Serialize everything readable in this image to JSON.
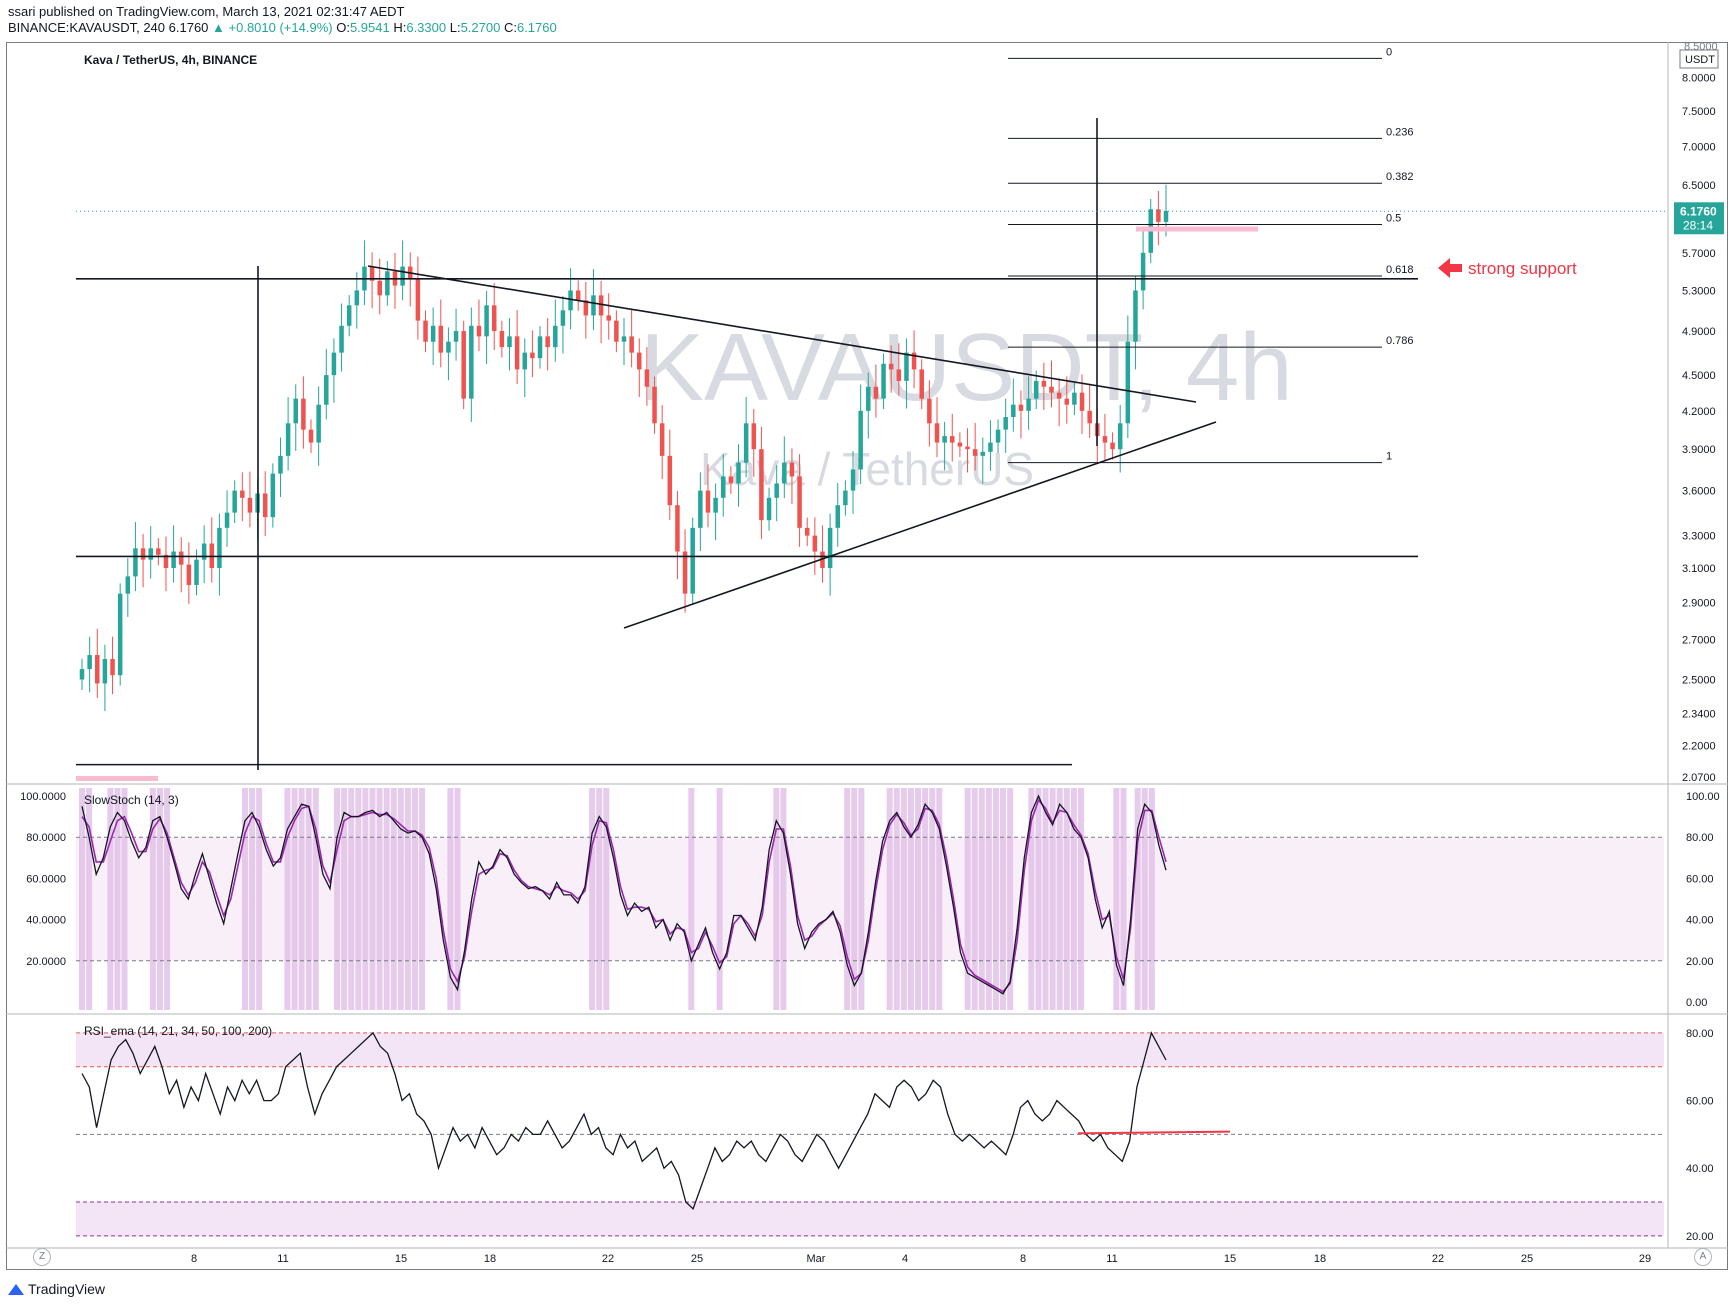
{
  "header": {
    "publish_line": "ssari published on TradingView.com, March 13, 2021 02:31:47 AEDT",
    "symbol": "BINANCE:KAVAUSDT, 240",
    "last": "6.1760",
    "change": "▲ +0.8010 (+14.9%)",
    "o_label": "O:",
    "o_value": "5.9541",
    "h_label": "H:",
    "h_value": "6.3300",
    "l_label": "L:",
    "l_value": "5.2700",
    "c_label": "C:",
    "c_value": "6.1760"
  },
  "main_pane": {
    "title": "Kava / TetherUS, 4h, BINANCE",
    "watermark_big": "KAVAUSDT, 4h",
    "watermark_small": "Kava / TetherUS",
    "currency": "USDT",
    "price_tag": "6.1760",
    "countdown": "28:14",
    "annotation": "strong support",
    "top_partial_label": "8.5000"
  },
  "stoch_pane": {
    "title": "SlowStoch (14, 3)"
  },
  "rsi_pane": {
    "title": "RSI_ema (14, 21, 34, 50, 100, 200)"
  },
  "footer": {
    "brand": "TradingView",
    "zoom_label": "Z",
    "auto_label": "A"
  },
  "colors": {
    "up": "#26a69a",
    "down": "#ef5350",
    "line": "#131722",
    "stoch_k": "#131722",
    "stoch_d": "#9c27b0",
    "band": "#f3e5f5",
    "highlight": "#e1bee7",
    "accent_red": "#f23645"
  },
  "chart_data": [
    {
      "type": "candlestick",
      "title": "Kava / TetherUS, 4h, BINANCE",
      "x_ticks": [
        "8",
        "11",
        "15",
        "18",
        "22",
        "25",
        "Mar",
        "4",
        "8",
        "11",
        "15",
        "18",
        "22",
        "25",
        "29"
      ],
      "y_ticks": [
        "8.0000",
        "7.5000",
        "7.0000",
        "6.5000",
        "5.7000",
        "5.3000",
        "4.9000",
        "4.5000",
        "4.2000",
        "3.9000",
        "3.6000",
        "3.3000",
        "3.1000",
        "2.9000",
        "2.7000",
        "2.5000",
        "2.3400",
        "2.2000",
        "2.0700"
      ],
      "ylim": [
        2.05,
        8.5
      ],
      "close_path": [
        2.55,
        2.62,
        2.48,
        2.6,
        2.52,
        2.95,
        3.05,
        3.22,
        3.15,
        3.22,
        3.18,
        3.1,
        3.2,
        3.12,
        3.0,
        3.15,
        3.25,
        3.1,
        3.35,
        3.45,
        3.6,
        3.55,
        3.45,
        3.58,
        3.42,
        3.72,
        3.85,
        4.1,
        4.3,
        4.05,
        3.95,
        4.25,
        4.5,
        4.7,
        4.95,
        5.15,
        5.3,
        5.55,
        5.4,
        5.25,
        5.5,
        5.35,
        5.55,
        5.42,
        5.0,
        4.8,
        4.95,
        4.7,
        4.8,
        4.9,
        4.3,
        4.95,
        4.85,
        5.15,
        4.9,
        4.75,
        4.85,
        4.55,
        4.7,
        4.65,
        4.85,
        4.75,
        4.95,
        5.1,
        5.3,
        5.2,
        5.05,
        5.25,
        5.05,
        5.0,
        4.8,
        4.85,
        4.7,
        4.55,
        4.4,
        4.1,
        3.85,
        3.5,
        3.2,
        2.95,
        3.35,
        3.6,
        3.45,
        3.55,
        3.7,
        3.65,
        3.8,
        4.1,
        3.9,
        3.4,
        3.55,
        3.65,
        3.8,
        3.7,
        3.35,
        3.3,
        3.2,
        3.1,
        3.35,
        3.5,
        3.6,
        3.75,
        4.2,
        4.4,
        4.3,
        4.6,
        4.55,
        4.45,
        4.7,
        4.55,
        4.3,
        4.1,
        3.95,
        4.0,
        3.95,
        3.92,
        3.9,
        3.85,
        3.88,
        3.95,
        4.05,
        4.15,
        4.25,
        4.2,
        4.3,
        4.45,
        4.4,
        4.35,
        4.3,
        4.25,
        4.35,
        4.2,
        4.1,
        4.0,
        3.95,
        3.9,
        4.1,
        4.8,
        5.3,
        5.7,
        6.2,
        6.05,
        6.18
      ],
      "horizontal_levels": [
        5.42,
        3.17,
        2.12
      ],
      "trendlines": [
        {
          "name": "descending resistance",
          "from": [
            "14",
            5.55
          ],
          "to": [
            "10",
            4.33
          ]
        },
        {
          "name": "ascending support",
          "from": [
            "22",
            2.79
          ],
          "to": [
            "12",
            4.22
          ]
        }
      ],
      "fibonacci": [
        {
          "level": "0",
          "price": 8.3
        },
        {
          "level": "0.236",
          "price": 7.11
        },
        {
          "level": "0.382",
          "price": 6.52
        },
        {
          "level": "0.5",
          "price": 6.02
        },
        {
          "level": "0.618",
          "price": 5.45
        },
        {
          "level": "0.786",
          "price": 4.75
        },
        {
          "level": "1",
          "price": 3.8
        }
      ],
      "last_price": 6.176
    },
    {
      "type": "line",
      "title": "SlowStoch (14, 3)",
      "y_ticks_left": [
        "100.0000",
        "80.0000",
        "60.0000",
        "40.0000",
        "20.0000"
      ],
      "y_ticks_right": [
        "100.00",
        "80.00",
        "60.00",
        "40.00",
        "20.00",
        "0.00"
      ],
      "ylim": [
        0,
        100
      ],
      "band": [
        20,
        80
      ],
      "series": [
        {
          "name": "%K",
          "values": [
            95,
            80,
            62,
            70,
            85,
            92,
            88,
            78,
            70,
            75,
            88,
            90,
            80,
            68,
            55,
            50,
            62,
            72,
            60,
            48,
            38,
            55,
            72,
            88,
            92,
            85,
            74,
            66,
            70,
            84,
            90,
            96,
            95,
            80,
            62,
            55,
            80,
            92,
            90,
            90,
            92,
            93,
            90,
            92,
            88,
            84,
            82,
            83,
            80,
            72,
            55,
            30,
            12,
            6,
            25,
            50,
            68,
            62,
            66,
            74,
            70,
            62,
            58,
            55,
            56,
            54,
            50,
            58,
            52,
            52,
            48,
            56,
            82,
            90,
            85,
            70,
            52,
            42,
            48,
            44,
            46,
            36,
            40,
            30,
            38,
            34,
            20,
            28,
            36,
            24,
            16,
            24,
            42,
            42,
            36,
            30,
            46,
            74,
            88,
            82,
            62,
            38,
            26,
            34,
            38,
            40,
            44,
            34,
            18,
            8,
            14,
            34,
            58,
            78,
            88,
            92,
            85,
            80,
            86,
            96,
            92,
            84,
            66,
            46,
            24,
            14,
            12,
            10,
            8,
            6,
            4,
            10,
            36,
            70,
            92,
            100,
            92,
            86,
            96,
            92,
            84,
            80,
            70,
            50,
            36,
            44,
            18,
            8,
            40,
            84,
            96,
            92,
            76,
            64
          ]
        },
        {
          "name": "%D",
          "values": [
            90,
            85,
            68,
            68,
            78,
            88,
            90,
            82,
            73,
            73,
            84,
            89,
            82,
            70,
            58,
            52,
            58,
            68,
            63,
            52,
            42,
            50,
            66,
            82,
            90,
            88,
            77,
            68,
            68,
            80,
            88,
            94,
            95,
            84,
            66,
            58,
            74,
            88,
            90,
            90,
            91,
            92,
            91,
            91,
            89,
            86,
            83,
            83,
            81,
            75,
            60,
            35,
            16,
            10,
            22,
            44,
            62,
            64,
            65,
            72,
            71,
            64,
            59,
            56,
            55,
            54,
            52,
            56,
            54,
            53,
            50,
            54,
            76,
            88,
            87,
            74,
            56,
            45,
            46,
            46,
            45,
            39,
            40,
            33,
            36,
            35,
            24,
            26,
            34,
            27,
            19,
            22,
            38,
            42,
            38,
            32,
            42,
            68,
            84,
            84,
            66,
            42,
            30,
            32,
            37,
            40,
            43,
            37,
            22,
            11,
            14,
            30,
            54,
            74,
            86,
            91,
            87,
            81,
            84,
            94,
            93,
            86,
            70,
            50,
            28,
            17,
            13,
            11,
            9,
            7,
            5,
            9,
            30,
            64,
            88,
            98,
            94,
            87,
            93,
            92,
            86,
            81,
            72,
            54,
            40,
            42,
            22,
            11,
            36,
            78,
            93,
            93,
            80,
            68
          ]
        }
      ],
      "highlight_bands_note": "overbought/oversold regions shaded"
    },
    {
      "type": "line",
      "title": "RSI_ema (14, 21, 34, 50, 100, 200)",
      "y_ticks": [
        "80.00",
        "60.00",
        "40.00",
        "20.00"
      ],
      "ylim": [
        17,
        85
      ],
      "overbought_band": [
        70,
        80
      ],
      "oversold_band": [
        20,
        30
      ],
      "midline": 50,
      "series": [
        {
          "name": "RSI",
          "values": [
            68,
            64,
            52,
            62,
            72,
            76,
            78,
            74,
            68,
            72,
            76,
            70,
            62,
            66,
            58,
            64,
            60,
            68,
            62,
            56,
            64,
            60,
            66,
            62,
            66,
            60,
            60,
            62,
            70,
            72,
            74,
            64,
            56,
            62,
            66,
            70,
            72,
            74,
            76,
            78,
            80,
            76,
            74,
            68,
            60,
            62,
            56,
            54,
            50,
            40,
            46,
            52,
            48,
            50,
            46,
            52,
            48,
            44,
            46,
            50,
            48,
            52,
            50,
            50,
            54,
            50,
            46,
            48,
            52,
            56,
            50,
            52,
            46,
            44,
            50,
            46,
            48,
            42,
            44,
            46,
            40,
            42,
            38,
            30,
            28,
            34,
            40,
            46,
            42,
            44,
            48,
            46,
            48,
            44,
            42,
            46,
            50,
            48,
            44,
            42,
            46,
            50,
            48,
            44,
            40,
            44,
            48,
            52,
            56,
            62,
            60,
            58,
            64,
            66,
            64,
            60,
            62,
            66,
            64,
            56,
            50,
            48,
            50,
            48,
            46,
            48,
            46,
            44,
            50,
            58,
            60,
            56,
            54,
            56,
            60,
            58,
            56,
            54,
            50,
            48,
            50,
            46,
            44,
            42,
            48,
            64,
            72,
            80,
            76,
            72
          ]
        }
      ]
    }
  ]
}
